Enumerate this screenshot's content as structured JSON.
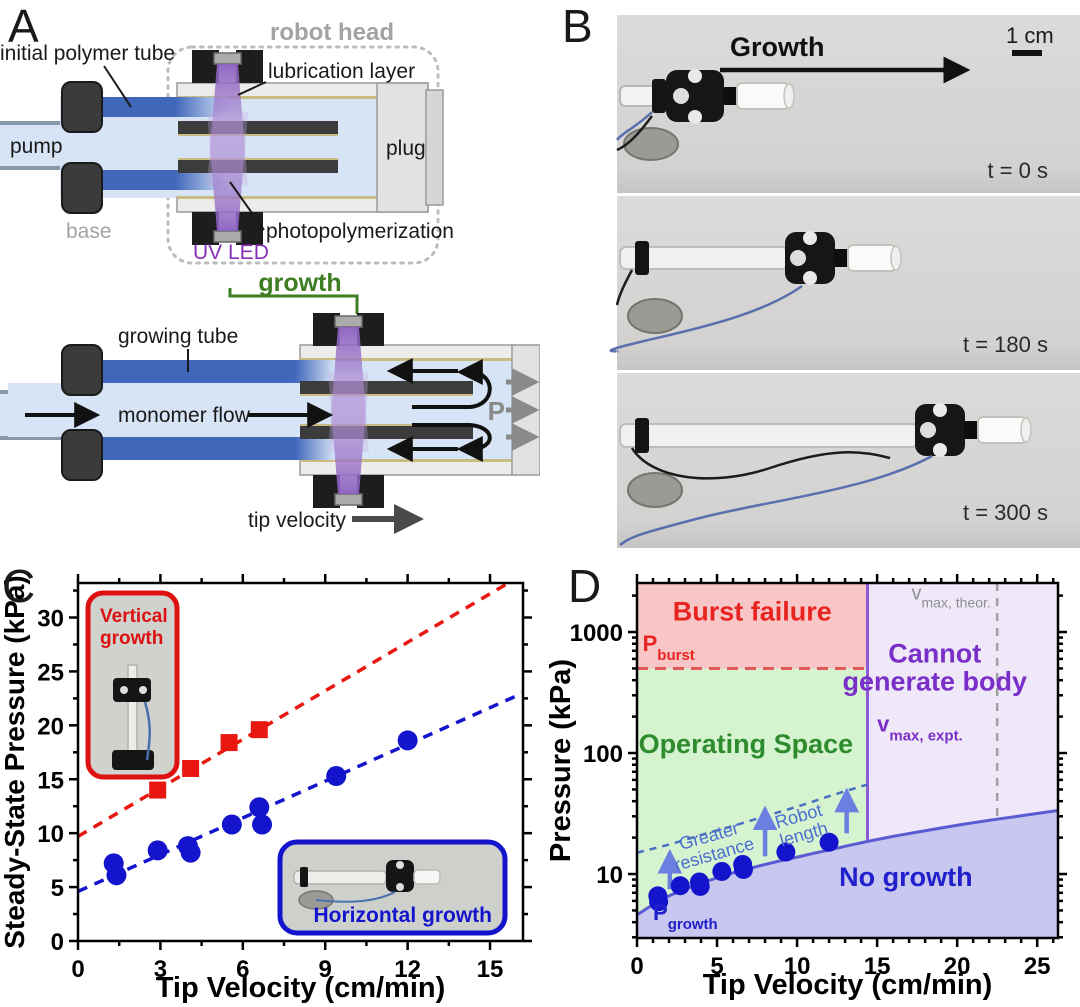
{
  "panel_letters": {
    "a": "A",
    "b": "B",
    "c": "C",
    "d": "D"
  },
  "panel_a": {
    "labels": {
      "initial_polymer_tube": "initial polymer tube",
      "robot_head": "robot head",
      "lubrication_layer": "lubrication layer",
      "pump": "pump",
      "plug": "plug",
      "base": "base",
      "uv_led": "UV LED",
      "photopolymerization": "photopolymerization",
      "growth": "growth",
      "growing_tube": "growing tube",
      "monomer_flow": "monomer flow",
      "pressure": "P",
      "tip_velocity": "tip velocity"
    },
    "colors": {
      "tube_dark_blue": "#4067ba",
      "interior_light_blue": "#d6e4f6",
      "shell_gray": "#ececea",
      "lubrication_tan": "#c9bc82",
      "uv_beam_purple": "#8a5fc0",
      "uv_led_text": "#8a2fb8",
      "growth_green": "#3f7d22",
      "gray_text": "#a3a3a3"
    }
  },
  "panel_b": {
    "growth_label": "Growth",
    "scale_bar_label": "1 cm",
    "timestamps": [
      "t = 0 s",
      "t = 180 s",
      "t = 300 s"
    ]
  },
  "chart_data": [
    {
      "panel": "C",
      "type": "scatter",
      "xlabel": "Tip Velocity (cm/min)",
      "ylabel": "Steady-State Pressure (kPa)",
      "xlim": [
        0,
        16.2
      ],
      "ylim": [
        0,
        33.2
      ],
      "xticks": [
        0,
        3,
        6,
        9,
        12,
        15
      ],
      "x_minor_step": 1.5,
      "yticks": [
        0,
        5,
        10,
        15,
        20,
        25,
        30
      ],
      "y_minor_step": 2.5,
      "grid": false,
      "series": [
        {
          "name": "Vertical growth",
          "marker": "square",
          "color": "#e8170f",
          "points": [
            [
              2.9,
              14.0
            ],
            [
              4.1,
              16.0
            ],
            [
              5.5,
              18.4
            ],
            [
              6.6,
              19.6
            ]
          ],
          "trendline": [
            [
              0,
              9.7
            ],
            [
              16.2,
              34.0
            ]
          ]
        },
        {
          "name": "Horizontal growth",
          "marker": "circle",
          "color": "#1414cc",
          "points": [
            [
              1.3,
              7.2
            ],
            [
              1.4,
              6.1
            ],
            [
              2.9,
              8.4
            ],
            [
              4.0,
              8.8
            ],
            [
              4.1,
              8.2
            ],
            [
              5.6,
              10.8
            ],
            [
              6.6,
              12.4
            ],
            [
              6.7,
              10.8
            ],
            [
              9.4,
              15.3
            ],
            [
              12.0,
              18.6
            ]
          ],
          "trendline": [
            [
              0,
              4.6
            ],
            [
              16.2,
              23.0
            ]
          ]
        }
      ],
      "insets": [
        {
          "id": "vertical-growth-inset",
          "lines": [
            "Vertical",
            "growth"
          ],
          "border_color": "#dd1111",
          "text_color": "#dd1111"
        },
        {
          "id": "horizontal-growth-inset",
          "lines": [
            "Horizontal growth"
          ],
          "border_color": "#1414cc",
          "text_color": "#1414cc"
        }
      ]
    },
    {
      "panel": "D",
      "type": "scatter",
      "xlabel": "Tip Velocity (cm/min)",
      "ylabel": "Pressure (kPa)",
      "xlim": [
        0,
        26.3
      ],
      "ylog": [
        2.96,
        2580
      ],
      "xticks": [
        0,
        5,
        10,
        15,
        20,
        25
      ],
      "x_minor_step": 1,
      "yticks": [
        10,
        100,
        1000
      ],
      "grid": false,
      "regions": [
        {
          "id": "burst-failure",
          "color": "#f8c6c6"
        },
        {
          "id": "operating-space",
          "color": "#d6f3d0"
        },
        {
          "id": "cannot-generate-body",
          "color": "#eee8f8"
        },
        {
          "id": "no-growth",
          "color": "#c8c7ef"
        }
      ],
      "boundaries": {
        "p_burst_kpa": 500,
        "v_max_expt": 14.4,
        "v_max_theor": 22.5,
        "p_growth_curve": [
          [
            0,
            4.6
          ],
          [
            1,
            5.6
          ],
          [
            2,
            6.6
          ],
          [
            3,
            7.5
          ],
          [
            4,
            8.4
          ],
          [
            5,
            9.3
          ],
          [
            6,
            10.2
          ],
          [
            7,
            11.1
          ],
          [
            8,
            12.0
          ],
          [
            9,
            12.9
          ],
          [
            10,
            13.8
          ],
          [
            11,
            14.8
          ],
          [
            12,
            15.8
          ],
          [
            13.2,
            17.2
          ],
          [
            14.4,
            18.6
          ],
          [
            16,
            20.5
          ],
          [
            18,
            22.8
          ],
          [
            20,
            25.3
          ],
          [
            22,
            27.8
          ],
          [
            24,
            30.3
          ],
          [
            26.3,
            33.5
          ]
        ],
        "resistance_dashed_curve": [
          [
            0,
            15
          ],
          [
            2,
            17.5
          ],
          [
            4,
            21
          ],
          [
            6,
            25
          ],
          [
            8,
            30
          ],
          [
            10,
            36
          ],
          [
            12,
            44
          ],
          [
            14.4,
            55
          ]
        ]
      },
      "points": {
        "name": "Horizontal growth data",
        "marker": "circle",
        "color": "#1414cc",
        "values": [
          [
            1.3,
            6.6
          ],
          [
            1.35,
            5.9
          ],
          [
            2.7,
            8.0
          ],
          [
            3.9,
            8.6
          ],
          [
            3.95,
            7.9
          ],
          [
            5.3,
            10.5
          ],
          [
            6.6,
            12.0
          ],
          [
            6.65,
            10.9
          ],
          [
            9.3,
            15.2
          ],
          [
            12.0,
            18.3
          ]
        ]
      },
      "arrows": [
        {
          "x": 2.05,
          "y1": 7.5,
          "y2": 14.0
        },
        {
          "x": 8.0,
          "y1": 14.0,
          "y2": 32.0
        },
        {
          "x": 13.1,
          "y1": 21.7,
          "y2": 45.0
        }
      ],
      "annotations": [
        {
          "id": "burst-failure-label",
          "text": "Burst failure",
          "x": 7.2,
          "y": 1250,
          "color": "#e82420",
          "size": 27,
          "weight": "bold",
          "anchor": "middle"
        },
        {
          "id": "p-burst-label",
          "text": "P",
          "sub": "burst",
          "x": 0.35,
          "y": 700,
          "color": "#e82420",
          "size": 22,
          "weight": "bold",
          "anchor": "start"
        },
        {
          "id": "operating-space-label",
          "text": "Operating Space",
          "x": 6.8,
          "y": 100,
          "color": "#2e8b2e",
          "size": 27,
          "weight": "bold",
          "anchor": "middle"
        },
        {
          "id": "cannot-label-1",
          "text": "Cannot",
          "x": 18.6,
          "y": 560,
          "color": "#7a2fc8",
          "size": 27,
          "weight": "bold",
          "anchor": "middle"
        },
        {
          "id": "cannot-label-2",
          "text": "generate body",
          "x": 18.6,
          "y": 330,
          "color": "#7a2fc8",
          "size": 27,
          "weight": "bold",
          "anchor": "middle"
        },
        {
          "id": "v-max-expt-label",
          "text": "v",
          "sub": "max, expt.",
          "x": 15.0,
          "y": 150,
          "color": "#7a2fc8",
          "size": 22,
          "weight": "bold",
          "anchor": "start"
        },
        {
          "id": "v-max-theor-label",
          "text": "v",
          "sub": "max, theor.",
          "x": 22.1,
          "y": 1850,
          "color": "#8f8f8f",
          "size": 20,
          "weight": "normal",
          "anchor": "end"
        },
        {
          "id": "no-growth-label",
          "text": "No growth",
          "x": 16.8,
          "y": 8,
          "color": "#2020cc",
          "size": 27,
          "weight": "bold",
          "anchor": "middle"
        },
        {
          "id": "p-growth-label",
          "text": "P",
          "sub": "growth",
          "x": 1.0,
          "y": 4.15,
          "color": "#2020cc",
          "size": 22,
          "weight": "bold",
          "anchor": "start"
        },
        {
          "id": "greater-resistance-label",
          "lines": [
            "Greater",
            "resistance"
          ],
          "x": 4.6,
          "y": 18.5,
          "color": "#4a6fd0",
          "size": 18,
          "weight": "normal",
          "anchor": "middle",
          "rotate": -16
        },
        {
          "id": "robot-length-label",
          "lines": [
            "Robot",
            "length"
          ],
          "x": 10.2,
          "y": 27,
          "color": "#4a6fd0",
          "size": 18,
          "weight": "normal",
          "anchor": "middle",
          "rotate": -16
        }
      ],
      "line_colors": {
        "p_growth": "#5a5ad2",
        "v_max_expt": "#8d5bd8",
        "v_max_theor": "#9f9f9f",
        "p_burst": "#e05858",
        "resistance": "#4a6fc0",
        "arrows": "#6b7fe0"
      }
    }
  ]
}
